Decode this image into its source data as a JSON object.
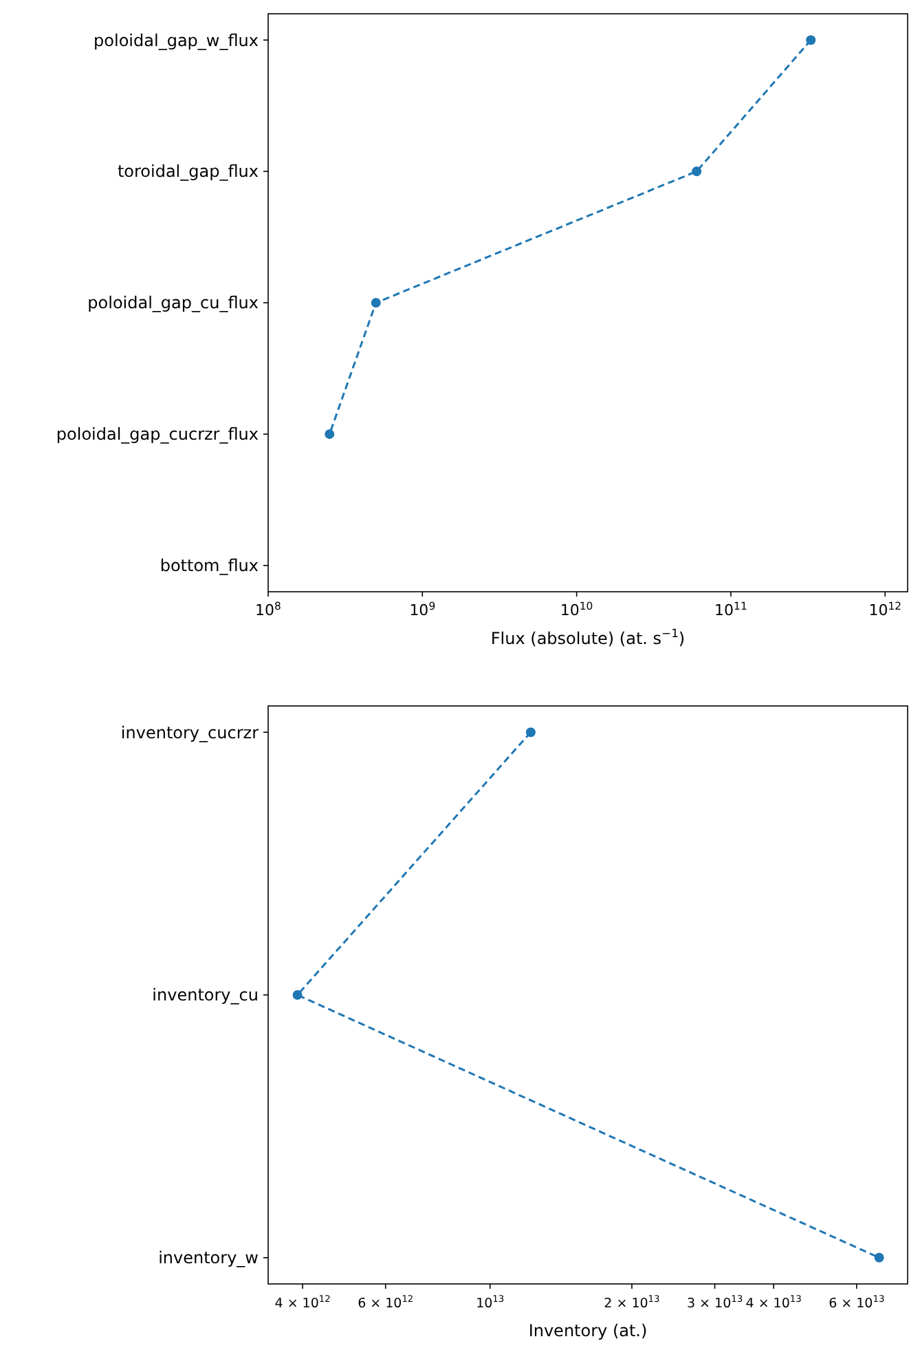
{
  "chart_data": [
    {
      "type": "line",
      "orientation": "horizontal",
      "categories": [
        "poloidal_gap_w_flux",
        "toroidal_gap_flux",
        "poloidal_gap_cu_flux",
        "poloidal_gap_cucrzr_flux",
        "bottom_flux"
      ],
      "series": [
        {
          "color": "#1f77b4",
          "values": [
            330000000000.0,
            60000000000.0,
            500000000.0,
            250000000.0,
            null
          ]
        }
      ],
      "xlabel": "Flux (absolute) (at. s$^{−1}$)",
      "log": "x",
      "xlim": [
        100000000.0,
        1400000000000.0
      ],
      "xticks": [
        {
          "value": 100000000.0,
          "label": "10$^{8}$"
        },
        {
          "value": 1000000000.0,
          "label": "10$^{9}$"
        },
        {
          "value": 10000000000.0,
          "label": "10$^{10}$"
        },
        {
          "value": 100000000000.0,
          "label": "10$^{11}$"
        },
        {
          "value": 1000000000000.0,
          "label": "10$^{12}$"
        }
      ],
      "marker": "circle",
      "line_style": "dashed",
      "grid": false
    },
    {
      "type": "line",
      "orientation": "horizontal",
      "categories": [
        "inventory_cucrzr",
        "inventory_cu",
        "inventory_w"
      ],
      "series": [
        {
          "color": "#1f77b4",
          "values": [
            12200000000000.0,
            3900000000000.0,
            67000000000000.0
          ]
        }
      ],
      "xlabel": "Inventory (at.)",
      "log": "x",
      "xlim": [
        3380000000000.0,
        77000000000000.0
      ],
      "xticks": [
        {
          "value": 4000000000000.0,
          "label": "4 × 10$^{12}$"
        },
        {
          "value": 6000000000000.0,
          "label": "6 × 10$^{12}$"
        },
        {
          "value": 10000000000000.0,
          "label": "10$^{13}$"
        },
        {
          "value": 20000000000000.0,
          "label": "2 × 10$^{13}$"
        },
        {
          "value": 30000000000000.0,
          "label": "3 × 10$^{13}$"
        },
        {
          "value": 40000000000000.0,
          "label": "4 × 10$^{13}$"
        },
        {
          "value": 60000000000000.0,
          "label": "6 × 10$^{13}$"
        }
      ],
      "marker": "circle",
      "line_style": "dashed",
      "grid": false
    }
  ]
}
